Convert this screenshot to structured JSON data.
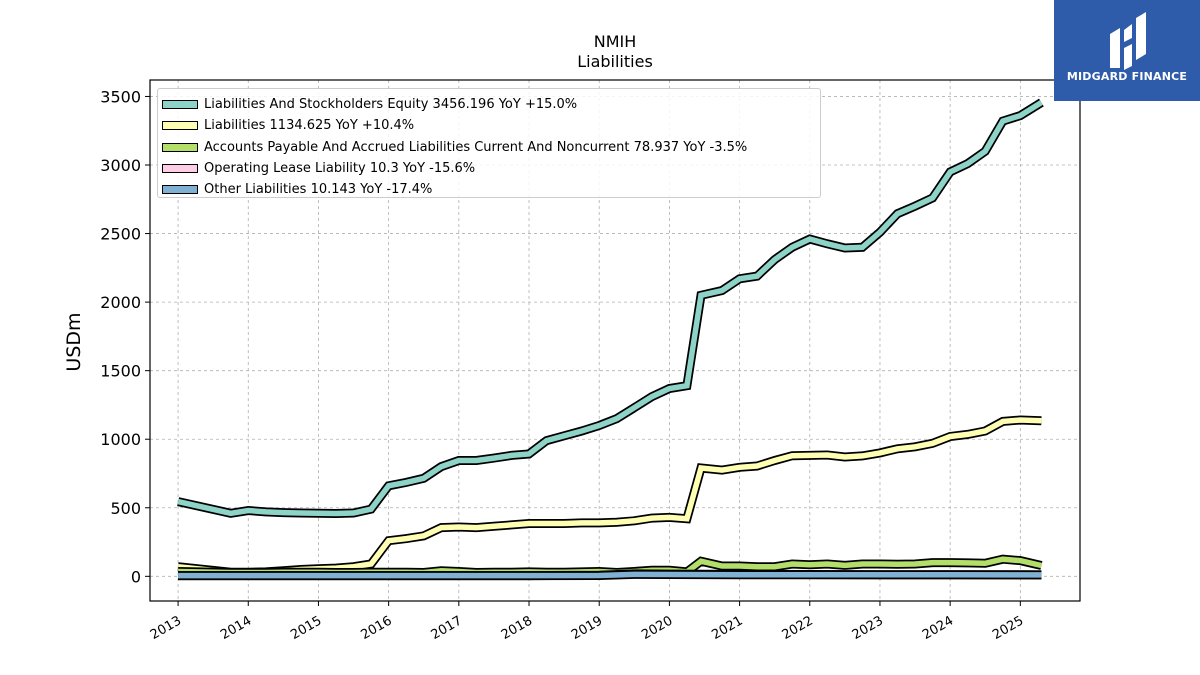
{
  "header": {
    "title": "NMIH",
    "subtitle": "Liabilities"
  },
  "brand": {
    "name": "MIDGARD FINANCE",
    "color": "#2f5bab"
  },
  "chart_data": {
    "type": "line",
    "title": "NMIH",
    "subtitle": "Liabilities",
    "xlabel": "",
    "ylabel": "USDm",
    "xlim": [
      2012.6,
      2025.85
    ],
    "ylim": [
      -180,
      3620
    ],
    "x_ticks": [
      "2013",
      "2014",
      "2015",
      "2016",
      "2017",
      "2018",
      "2019",
      "2020",
      "2021",
      "2022",
      "2023",
      "2024",
      "2025"
    ],
    "y_ticks": [
      "0",
      "500",
      "1000",
      "1500",
      "2000",
      "2500",
      "3000",
      "3500"
    ],
    "grid": true,
    "legend_position": "top-left",
    "series": [
      {
        "name": "Liabilities And Stockholders Equity",
        "legend": "Liabilities And Stockholders Equity  3456.196 YoY +15.0%",
        "color": "#8dd3c7",
        "points": [
          [
            2013.0,
            545
          ],
          [
            2013.75,
            460
          ],
          [
            2014.0,
            480
          ],
          [
            2014.25,
            470
          ],
          [
            2014.5,
            465
          ],
          [
            2014.75,
            462
          ],
          [
            2015.0,
            460
          ],
          [
            2015.25,
            458
          ],
          [
            2015.5,
            462
          ],
          [
            2015.75,
            490
          ],
          [
            2016.0,
            660
          ],
          [
            2016.25,
            685
          ],
          [
            2016.5,
            715
          ],
          [
            2016.75,
            800
          ],
          [
            2017.0,
            845
          ],
          [
            2017.25,
            845
          ],
          [
            2017.5,
            862
          ],
          [
            2017.75,
            882
          ],
          [
            2018.0,
            892
          ],
          [
            2018.25,
            990
          ],
          [
            2018.5,
            1025
          ],
          [
            2018.75,
            1060
          ],
          [
            2019.0,
            1100
          ],
          [
            2019.25,
            1150
          ],
          [
            2019.5,
            1230
          ],
          [
            2019.75,
            1310
          ],
          [
            2020.0,
            1370
          ],
          [
            2020.25,
            1390
          ],
          [
            2020.45,
            2050
          ],
          [
            2020.75,
            2085
          ],
          [
            2021.0,
            2170
          ],
          [
            2021.25,
            2190
          ],
          [
            2021.5,
            2310
          ],
          [
            2021.75,
            2400
          ],
          [
            2022.0,
            2460
          ],
          [
            2022.25,
            2425
          ],
          [
            2022.5,
            2395
          ],
          [
            2022.75,
            2400
          ],
          [
            2023.0,
            2510
          ],
          [
            2023.25,
            2645
          ],
          [
            2023.5,
            2700
          ],
          [
            2023.75,
            2760
          ],
          [
            2024.0,
            2950
          ],
          [
            2024.25,
            3010
          ],
          [
            2024.5,
            3100
          ],
          [
            2024.75,
            3320
          ],
          [
            2025.0,
            3360
          ],
          [
            2025.3,
            3456
          ]
        ]
      },
      {
        "name": "Liabilities",
        "legend": "Liabilities  1134.625 YoY +10.4%",
        "color": "#ffffb3",
        "points": [
          [
            2013.0,
            70
          ],
          [
            2013.75,
            30
          ],
          [
            2014.0,
            30
          ],
          [
            2014.25,
            32
          ],
          [
            2014.5,
            40
          ],
          [
            2014.75,
            50
          ],
          [
            2015.0,
            55
          ],
          [
            2015.25,
            60
          ],
          [
            2015.5,
            70
          ],
          [
            2015.75,
            90
          ],
          [
            2016.0,
            260
          ],
          [
            2016.25,
            275
          ],
          [
            2016.5,
            295
          ],
          [
            2016.75,
            355
          ],
          [
            2017.0,
            360
          ],
          [
            2017.25,
            355
          ],
          [
            2017.5,
            365
          ],
          [
            2017.75,
            375
          ],
          [
            2018.0,
            385
          ],
          [
            2018.25,
            385
          ],
          [
            2018.5,
            385
          ],
          [
            2018.75,
            390
          ],
          [
            2019.0,
            390
          ],
          [
            2019.25,
            395
          ],
          [
            2019.5,
            405
          ],
          [
            2019.75,
            425
          ],
          [
            2020.0,
            430
          ],
          [
            2020.25,
            420
          ],
          [
            2020.45,
            790
          ],
          [
            2020.75,
            775
          ],
          [
            2021.0,
            795
          ],
          [
            2021.25,
            805
          ],
          [
            2021.5,
            845
          ],
          [
            2021.75,
            880
          ],
          [
            2022.0,
            882
          ],
          [
            2022.25,
            885
          ],
          [
            2022.5,
            870
          ],
          [
            2022.75,
            878
          ],
          [
            2023.0,
            900
          ],
          [
            2023.25,
            930
          ],
          [
            2023.5,
            945
          ],
          [
            2023.75,
            970
          ],
          [
            2024.0,
            1020
          ],
          [
            2024.25,
            1035
          ],
          [
            2024.5,
            1060
          ],
          [
            2024.75,
            1130
          ],
          [
            2025.0,
            1140
          ],
          [
            2025.3,
            1135
          ]
        ]
      },
      {
        "name": "Accounts Payable And Accrued Liabilities Current And Noncurrent",
        "legend": "Accounts Payable And Accrued Liabilities Current And Noncurrent  78.937 YoY -3.5%",
        "color": "#b3de69",
        "points": [
          [
            2013.0,
            35
          ],
          [
            2013.75,
            28
          ],
          [
            2014.0,
            28
          ],
          [
            2014.25,
            28
          ],
          [
            2014.5,
            30
          ],
          [
            2014.75,
            30
          ],
          [
            2015.0,
            30
          ],
          [
            2015.25,
            28
          ],
          [
            2015.5,
            28
          ],
          [
            2015.75,
            30
          ],
          [
            2016.0,
            30
          ],
          [
            2016.25,
            30
          ],
          [
            2016.5,
            28
          ],
          [
            2016.75,
            40
          ],
          [
            2017.0,
            35
          ],
          [
            2017.25,
            28
          ],
          [
            2017.5,
            30
          ],
          [
            2017.75,
            30
          ],
          [
            2018.0,
            32
          ],
          [
            2018.25,
            30
          ],
          [
            2018.5,
            30
          ],
          [
            2018.75,
            32
          ],
          [
            2019.0,
            35
          ],
          [
            2019.25,
            28
          ],
          [
            2019.5,
            35
          ],
          [
            2019.75,
            45
          ],
          [
            2020.0,
            45
          ],
          [
            2020.25,
            32
          ],
          [
            2020.45,
            110
          ],
          [
            2020.75,
            75
          ],
          [
            2021.0,
            75
          ],
          [
            2021.25,
            70
          ],
          [
            2021.5,
            70
          ],
          [
            2021.75,
            90
          ],
          [
            2022.0,
            85
          ],
          [
            2022.25,
            90
          ],
          [
            2022.5,
            80
          ],
          [
            2022.75,
            90
          ],
          [
            2023.0,
            90
          ],
          [
            2023.25,
            88
          ],
          [
            2023.5,
            90
          ],
          [
            2023.75,
            100
          ],
          [
            2024.0,
            100
          ],
          [
            2024.25,
            98
          ],
          [
            2024.5,
            95
          ],
          [
            2024.75,
            125
          ],
          [
            2025.0,
            115
          ],
          [
            2025.3,
            79
          ]
        ]
      },
      {
        "name": "Operating Lease Liability",
        "legend": "Operating Lease Liability  10.3 YoY -15.6%",
        "color": "#fccde5",
        "points": [
          [
            2013.0,
            5
          ],
          [
            2014.0,
            5
          ],
          [
            2015.0,
            5
          ],
          [
            2016.0,
            5
          ],
          [
            2017.0,
            5
          ],
          [
            2018.0,
            5
          ],
          [
            2019.0,
            8
          ],
          [
            2019.5,
            18
          ],
          [
            2020.0,
            16
          ],
          [
            2021.0,
            14
          ],
          [
            2022.0,
            13
          ],
          [
            2023.0,
            12
          ],
          [
            2024.0,
            12
          ],
          [
            2025.0,
            11
          ],
          [
            2025.3,
            10.3
          ]
        ]
      },
      {
        "name": "Other Liabilities",
        "legend": "Other Liabilities  10.143 YoY -17.4%",
        "color": "#80b1d3",
        "points": [
          [
            2013.0,
            5
          ],
          [
            2014.0,
            5
          ],
          [
            2015.0,
            5
          ],
          [
            2016.0,
            5
          ],
          [
            2017.0,
            5
          ],
          [
            2018.0,
            5
          ],
          [
            2019.0,
            6
          ],
          [
            2019.5,
            14
          ],
          [
            2020.0,
            13
          ],
          [
            2021.0,
            12
          ],
          [
            2022.0,
            11
          ],
          [
            2023.0,
            11
          ],
          [
            2024.0,
            11
          ],
          [
            2025.0,
            10.5
          ],
          [
            2025.3,
            10.1
          ]
        ]
      }
    ]
  }
}
